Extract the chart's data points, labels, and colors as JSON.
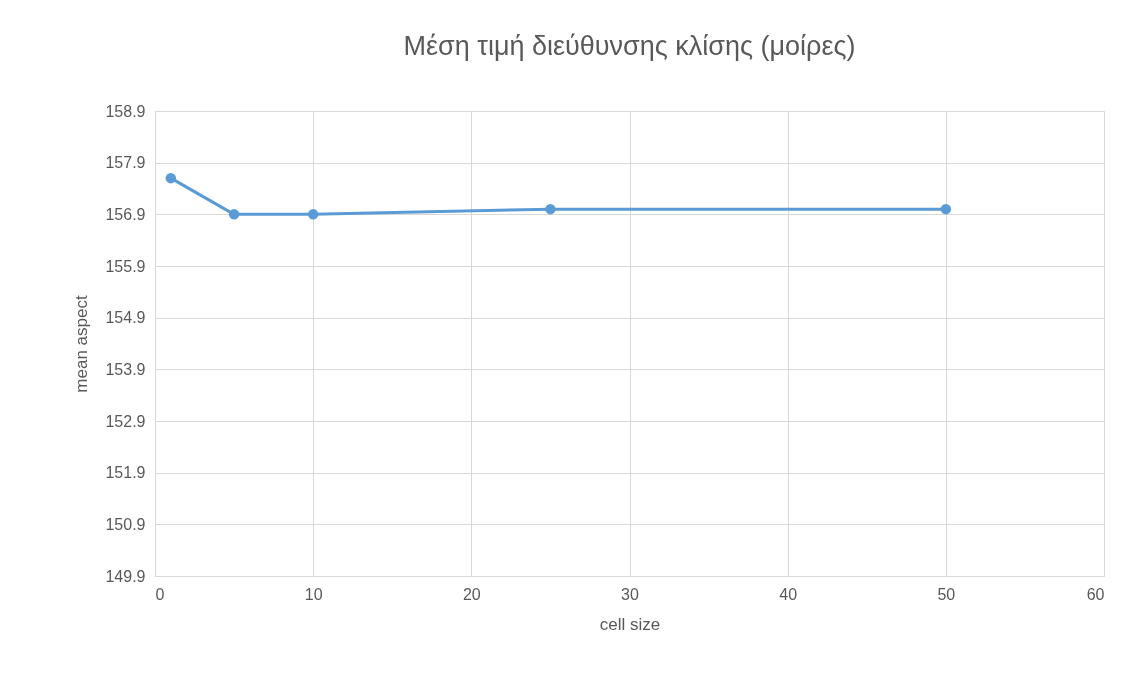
{
  "chart_data": {
    "type": "line",
    "title": "Μέση τιμή διεύθυνσης κλίσης (μοίρες)",
    "xlabel": "cell size",
    "ylabel": "mean aspect",
    "x": [
      1,
      5,
      10,
      25,
      50
    ],
    "series": [
      {
        "color": "#5b9bd5",
        "values": [
          157.6,
          156.9,
          156.9,
          157.0,
          157.0
        ]
      }
    ],
    "xlim": [
      0,
      60
    ],
    "xticks": [
      0,
      10,
      20,
      30,
      40,
      50,
      60
    ],
    "ylim": [
      149.9,
      158.9
    ],
    "yticks": [
      149.9,
      150.9,
      151.9,
      152.9,
      153.9,
      154.9,
      155.9,
      156.9,
      157.9,
      158.9
    ],
    "grid": true,
    "marker": "circle",
    "line_style": "solid"
  }
}
